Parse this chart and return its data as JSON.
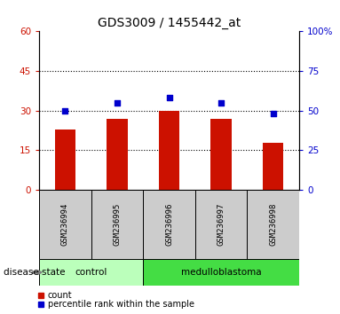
{
  "title": "GDS3009 / 1455442_at",
  "samples": [
    "GSM236994",
    "GSM236995",
    "GSM236996",
    "GSM236997",
    "GSM236998"
  ],
  "counts": [
    23,
    27,
    30,
    27,
    18
  ],
  "percentiles": [
    50,
    55,
    58,
    55,
    48
  ],
  "bar_color": "#cc1100",
  "dot_color": "#0000cc",
  "ylim_left": [
    0,
    60
  ],
  "ylim_right": [
    0,
    100
  ],
  "yticks_left": [
    0,
    15,
    30,
    45,
    60
  ],
  "yticks_right": [
    0,
    25,
    50,
    75,
    100
  ],
  "ytick_labels_right": [
    "0",
    "25",
    "50",
    "75",
    "100%"
  ],
  "grid_vals": [
    15,
    30,
    45
  ],
  "groups": [
    {
      "label": "control",
      "indices": [
        0,
        1
      ],
      "color": "#bbffbb"
    },
    {
      "label": "medulloblastoma",
      "indices": [
        2,
        3,
        4
      ],
      "color": "#44dd44"
    }
  ],
  "disease_state_label": "disease state",
  "legend_items": [
    {
      "color": "#cc1100",
      "label": "count"
    },
    {
      "color": "#0000cc",
      "label": "percentile rank within the sample"
    }
  ],
  "title_fontsize": 10,
  "tick_fontsize": 7.5,
  "label_fontsize": 7.5
}
